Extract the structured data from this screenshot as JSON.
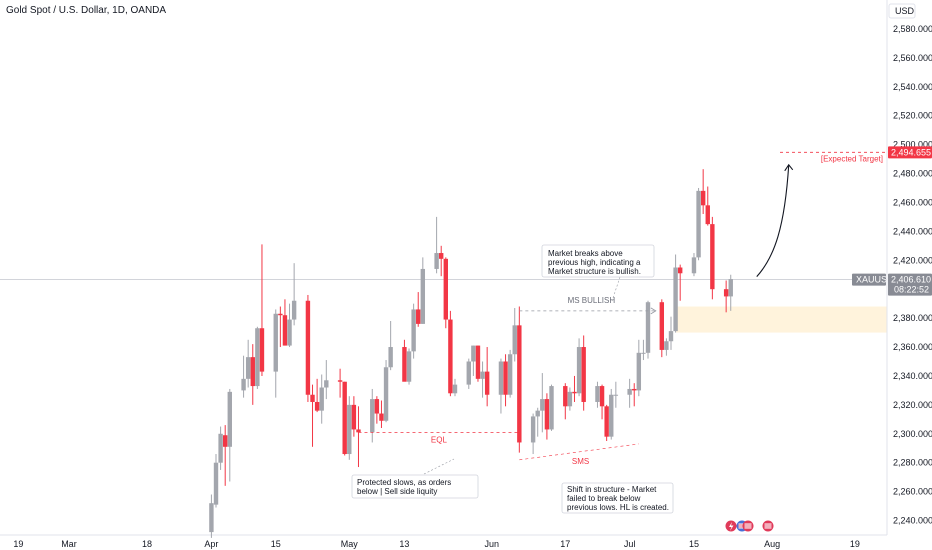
{
  "title": "Gold Spot / U.S. Dollar, 1D, OANDA",
  "currency_button": "USD",
  "colors": {
    "up": "#a3a6ad",
    "down": "#f23645",
    "wick": "#9598a1",
    "axis_text": "#131722",
    "crosshair": "#c3c6ce",
    "target_red": "#f23645",
    "zone_fill": "#fff3dc",
    "price_label_bg": "#888b94"
  },
  "chart_data": {
    "type": "candlestick",
    "ylim": [
      2230,
      2600
    ],
    "y_ticks": [
      2240,
      2260,
      2280,
      2300,
      2320,
      2340,
      2360,
      2380,
      2400,
      2420,
      2440,
      2460,
      2480,
      2500,
      2520,
      2540,
      2560,
      2580
    ],
    "y_tick_labels": [
      "2,240.000",
      "2,260.000",
      "2,280.000",
      "2,300.000",
      "2,320.000",
      "2,340.000",
      "2,360.000",
      "2,380.000",
      "2,400.000",
      "2,420.000",
      "2,440.000",
      "2,460.000",
      "2,480.000",
      "2,500.000",
      "2,520.000",
      "2,540.000",
      "2,560.000",
      "2,580.000"
    ],
    "x_labels": [
      "19",
      "Mar",
      "18",
      "Apr",
      "15",
      "May",
      "13",
      "Jun",
      "17",
      "Jul",
      "15",
      "Aug",
      "19"
    ],
    "x_label_dates": [
      "2024-02-19",
      "2024-03-01",
      "2024-03-18",
      "2024-04-01",
      "2024-04-15",
      "2024-05-01",
      "2024-05-13",
      "2024-06-01",
      "2024-06-17",
      "2024-07-01",
      "2024-07-15",
      "2024-08-01",
      "2024-08-19"
    ],
    "x_range": [
      "2024-02-15",
      "2024-08-26"
    ],
    "candles": [
      {
        "date": "2024-04-01",
        "open": 2232,
        "high": 2258,
        "low": 2228,
        "close": 2252
      },
      {
        "date": "2024-04-02",
        "open": 2251,
        "high": 2286,
        "low": 2249,
        "close": 2280
      },
      {
        "date": "2024-04-03",
        "open": 2280,
        "high": 2305,
        "low": 2275,
        "close": 2300
      },
      {
        "date": "2024-04-04",
        "open": 2299,
        "high": 2306,
        "low": 2264,
        "close": 2291
      },
      {
        "date": "2024-04-05",
        "open": 2291,
        "high": 2331,
        "low": 2267,
        "close": 2329
      },
      {
        "date": "2024-04-08",
        "open": 2330,
        "high": 2354,
        "low": 2325,
        "close": 2338
      },
      {
        "date": "2024-04-09",
        "open": 2338,
        "high": 2365,
        "low": 2332,
        "close": 2353
      },
      {
        "date": "2024-04-10",
        "open": 2353,
        "high": 2362,
        "low": 2320,
        "close": 2333
      },
      {
        "date": "2024-04-11",
        "open": 2333,
        "high": 2374,
        "low": 2331,
        "close": 2373
      },
      {
        "date": "2024-04-12",
        "open": 2373,
        "high": 2431,
        "low": 2340,
        "close": 2343
      },
      {
        "date": "2024-04-15",
        "open": 2343,
        "high": 2386,
        "low": 2325,
        "close": 2383
      },
      {
        "date": "2024-04-16",
        "open": 2383,
        "high": 2388,
        "low": 2360,
        "close": 2382
      },
      {
        "date": "2024-04-17",
        "open": 2382,
        "high": 2393,
        "low": 2361,
        "close": 2361
      },
      {
        "date": "2024-04-18",
        "open": 2361,
        "high": 2390,
        "low": 2360,
        "close": 2379
      },
      {
        "date": "2024-04-19",
        "open": 2379,
        "high": 2418,
        "low": 2375,
        "close": 2392
      },
      {
        "date": "2024-04-22",
        "open": 2392,
        "high": 2396,
        "low": 2322,
        "close": 2327
      },
      {
        "date": "2024-04-23",
        "open": 2327,
        "high": 2334,
        "low": 2291,
        "close": 2322
      },
      {
        "date": "2024-04-24",
        "open": 2322,
        "high": 2338,
        "low": 2315,
        "close": 2316
      },
      {
        "date": "2024-04-25",
        "open": 2316,
        "high": 2341,
        "low": 2307,
        "close": 2332
      },
      {
        "date": "2024-04-26",
        "open": 2332,
        "high": 2351,
        "low": 2324,
        "close": 2337
      },
      {
        "date": "2024-04-29",
        "open": 2337,
        "high": 2345,
        "low": 2325,
        "close": 2336
      },
      {
        "date": "2024-04-30",
        "open": 2336,
        "high": 2336,
        "low": 2285,
        "close": 2286
      },
      {
        "date": "2024-05-01",
        "open": 2286,
        "high": 2326,
        "low": 2282,
        "close": 2320
      },
      {
        "date": "2024-05-02",
        "open": 2320,
        "high": 2326,
        "low": 2298,
        "close": 2303
      },
      {
        "date": "2024-05-03",
        "open": 2303,
        "high": 2319,
        "low": 2277,
        "close": 2301
      },
      {
        "date": "2024-05-06",
        "open": 2301,
        "high": 2331,
        "low": 2294,
        "close": 2324
      },
      {
        "date": "2024-05-07",
        "open": 2324,
        "high": 2326,
        "low": 2307,
        "close": 2314
      },
      {
        "date": "2024-05-08",
        "open": 2314,
        "high": 2323,
        "low": 2304,
        "close": 2309
      },
      {
        "date": "2024-05-09",
        "open": 2309,
        "high": 2351,
        "low": 2308,
        "close": 2346
      },
      {
        "date": "2024-05-10",
        "open": 2346,
        "high": 2378,
        "low": 2344,
        "close": 2360
      },
      {
        "date": "2024-05-13",
        "open": 2360,
        "high": 2365,
        "low": 2337,
        "close": 2336
      },
      {
        "date": "2024-05-14",
        "open": 2336,
        "high": 2359,
        "low": 2334,
        "close": 2357
      },
      {
        "date": "2024-05-15",
        "open": 2357,
        "high": 2390,
        "low": 2352,
        "close": 2386
      },
      {
        "date": "2024-05-16",
        "open": 2386,
        "high": 2398,
        "low": 2374,
        "close": 2376
      },
      {
        "date": "2024-05-17",
        "open": 2376,
        "high": 2422,
        "low": 2376,
        "close": 2414
      },
      {
        "date": "2024-05-20",
        "open": 2414,
        "high": 2450,
        "low": 2411,
        "close": 2425
      },
      {
        "date": "2024-05-21",
        "open": 2425,
        "high": 2430,
        "low": 2409,
        "close": 2421
      },
      {
        "date": "2024-05-22",
        "open": 2421,
        "high": 2422,
        "low": 2373,
        "close": 2379
      },
      {
        "date": "2024-05-23",
        "open": 2379,
        "high": 2385,
        "low": 2326,
        "close": 2328
      },
      {
        "date": "2024-05-24",
        "open": 2328,
        "high": 2338,
        "low": 2326,
        "close": 2334
      },
      {
        "date": "2024-05-27",
        "open": 2334,
        "high": 2352,
        "low": 2331,
        "close": 2350
      },
      {
        "date": "2024-05-28",
        "open": 2350,
        "high": 2361,
        "low": 2340,
        "close": 2361
      },
      {
        "date": "2024-05-29",
        "open": 2361,
        "high": 2361,
        "low": 2336,
        "close": 2338
      },
      {
        "date": "2024-05-30",
        "open": 2338,
        "high": 2350,
        "low": 2325,
        "close": 2343
      },
      {
        "date": "2024-05-31",
        "open": 2343,
        "high": 2360,
        "low": 2319,
        "close": 2327
      },
      {
        "date": "2024-06-03",
        "open": 2327,
        "high": 2352,
        "low": 2314,
        "close": 2350
      },
      {
        "date": "2024-06-04",
        "open": 2350,
        "high": 2355,
        "low": 2319,
        "close": 2327
      },
      {
        "date": "2024-06-05",
        "open": 2327,
        "high": 2358,
        "low": 2325,
        "close": 2355
      },
      {
        "date": "2024-06-06",
        "open": 2355,
        "high": 2387,
        "low": 2350,
        "close": 2375
      },
      {
        "date": "2024-06-07",
        "open": 2375,
        "high": 2388,
        "low": 2287,
        "close": 2294
      },
      {
        "date": "2024-06-10",
        "open": 2294,
        "high": 2314,
        "low": 2286,
        "close": 2312
      },
      {
        "date": "2024-06-11",
        "open": 2312,
        "high": 2318,
        "low": 2298,
        "close": 2316
      },
      {
        "date": "2024-06-12",
        "open": 2316,
        "high": 2342,
        "low": 2301,
        "close": 2324
      },
      {
        "date": "2024-06-13",
        "open": 2324,
        "high": 2328,
        "low": 2296,
        "close": 2303
      },
      {
        "date": "2024-06-14",
        "open": 2303,
        "high": 2334,
        "low": 2302,
        "close": 2333
      },
      {
        "date": "2024-06-17",
        "open": 2333,
        "high": 2335,
        "low": 2310,
        "close": 2319
      },
      {
        "date": "2024-06-18",
        "open": 2319,
        "high": 2332,
        "low": 2316,
        "close": 2329
      },
      {
        "date": "2024-06-19",
        "open": 2329,
        "high": 2340,
        "low": 2322,
        "close": 2328
      },
      {
        "date": "2024-06-20",
        "open": 2328,
        "high": 2366,
        "low": 2326,
        "close": 2360
      },
      {
        "date": "2024-06-21",
        "open": 2360,
        "high": 2368,
        "low": 2316,
        "close": 2322
      },
      {
        "date": "2024-06-24",
        "open": 2322,
        "high": 2336,
        "low": 2318,
        "close": 2333
      },
      {
        "date": "2024-06-25",
        "open": 2333,
        "high": 2334,
        "low": 2310,
        "close": 2319
      },
      {
        "date": "2024-06-26",
        "open": 2319,
        "high": 2320,
        "low": 2295,
        "close": 2298
      },
      {
        "date": "2024-06-27",
        "open": 2298,
        "high": 2331,
        "low": 2296,
        "close": 2327
      },
      {
        "date": "2024-06-28",
        "open": 2327,
        "high": 2336,
        "low": 2318,
        "close": 2327
      },
      {
        "date": "2024-07-01",
        "open": 2327,
        "high": 2338,
        "low": 2318,
        "close": 2331
      },
      {
        "date": "2024-07-02",
        "open": 2331,
        "high": 2335,
        "low": 2319,
        "close": 2330
      },
      {
        "date": "2024-07-03",
        "open": 2330,
        "high": 2365,
        "low": 2326,
        "close": 2356
      },
      {
        "date": "2024-07-04",
        "open": 2356,
        "high": 2365,
        "low": 2351,
        "close": 2356
      },
      {
        "date": "2024-07-05",
        "open": 2356,
        "high": 2392,
        "low": 2352,
        "close": 2391
      },
      {
        "date": "2024-07-08",
        "open": 2391,
        "high": 2393,
        "low": 2353,
        "close": 2358
      },
      {
        "date": "2024-07-09",
        "open": 2358,
        "high": 2366,
        "low": 2354,
        "close": 2364
      },
      {
        "date": "2024-07-10",
        "open": 2364,
        "high": 2381,
        "low": 2358,
        "close": 2371
      },
      {
        "date": "2024-07-11",
        "open": 2371,
        "high": 2424,
        "low": 2370,
        "close": 2415
      },
      {
        "date": "2024-07-12",
        "open": 2415,
        "high": 2417,
        "low": 2392,
        "close": 2411
      },
      {
        "date": "2024-07-15",
        "open": 2411,
        "high": 2425,
        "low": 2409,
        "close": 2422
      },
      {
        "date": "2024-07-16",
        "open": 2422,
        "high": 2470,
        "low": 2420,
        "close": 2468
      },
      {
        "date": "2024-07-17",
        "open": 2468,
        "high": 2483,
        "low": 2452,
        "close": 2458
      },
      {
        "date": "2024-07-18",
        "open": 2458,
        "high": 2471,
        "low": 2444,
        "close": 2445
      },
      {
        "date": "2024-07-19",
        "open": 2445,
        "high": 2450,
        "low": 2393,
        "close": 2400
      },
      {
        "date": "2024-07-22",
        "open": 2400,
        "high": 2406,
        "low": 2384,
        "close": 2395
      },
      {
        "date": "2024-07-23",
        "open": 2395,
        "high": 2410,
        "low": 2385,
        "close": 2407
      }
    ],
    "current_price": {
      "symbol": "XAUUSD",
      "price": "2,406.610",
      "countdown": "08:22:52",
      "value": 2406.61
    },
    "target": {
      "label": "[Expected Target]",
      "price": "2,494.655",
      "value": 2494.655
    },
    "annotations": {
      "eql": "EQL",
      "ms_bullish": "MS BULLISH",
      "sms": "SMS",
      "note_breaks": [
        "Market breaks above",
        "previous high, indicating a",
        "Market structure is bullish."
      ],
      "note_protected": [
        "Protected slows, as orders",
        "below | Sell side liquity"
      ],
      "note_shift": [
        "Shift in structure - Market",
        "failed to break below",
        "previous lows. HL is created."
      ]
    }
  }
}
